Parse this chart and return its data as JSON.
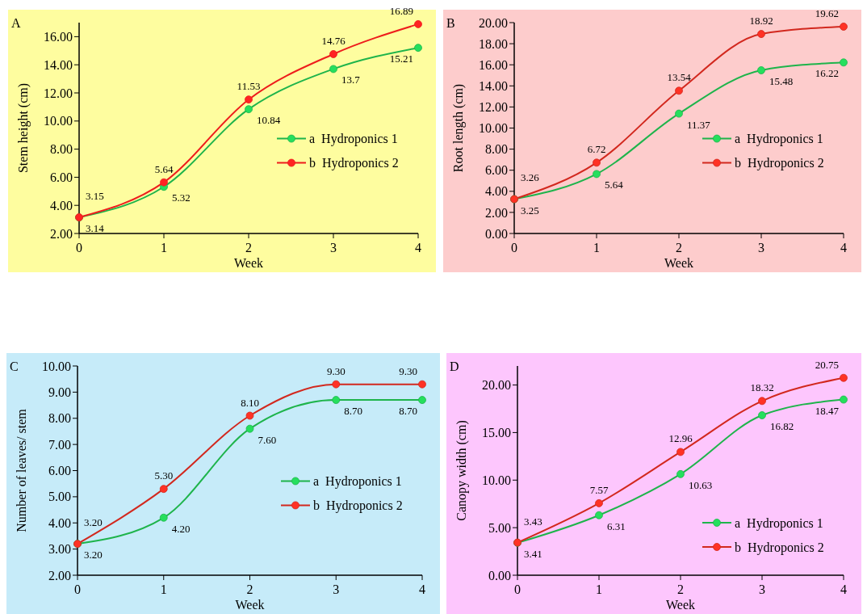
{
  "chart_data": [
    {
      "type": "line",
      "title": "A",
      "xlabel": "Week",
      "ylabel": "Stem height  (cm)",
      "x": [
        0,
        1,
        2,
        3,
        4
      ],
      "xlim": [
        0,
        4
      ],
      "xticks": [
        0,
        1,
        2,
        3,
        4
      ],
      "ylim": [
        2,
        17
      ],
      "yticks": [
        {
          "value": 2,
          "label": "2.00"
        },
        {
          "value": 4,
          "label": "4.00"
        },
        {
          "value": 6,
          "label": "6.00"
        },
        {
          "value": 8,
          "label": "8.00"
        },
        {
          "value": 10,
          "label": "10.00"
        },
        {
          "value": 12,
          "label": "12.00"
        },
        {
          "value": 14,
          "label": "14.00"
        },
        {
          "value": 16,
          "label": "16.00"
        }
      ],
      "marker": "circle",
      "legend": "right",
      "grid": false,
      "series": [
        {
          "name": "a  Hydroponics 1",
          "color": "#1eb44b",
          "values": [
            3.14,
            5.32,
            10.84,
            13.7,
            15.21
          ],
          "value_labels": [
            "3.14",
            "5.32",
            "10.84",
            "13.7",
            "15.21"
          ]
        },
        {
          "name": "b  Hydroponics 2",
          "color": "#ee1c1c",
          "values": [
            3.15,
            5.64,
            11.53,
            14.76,
            16.89
          ],
          "value_labels": [
            "3.15",
            "5.64",
            "11.53",
            "14.76",
            "16.89"
          ]
        }
      ]
    },
    {
      "type": "line",
      "title": "B",
      "xlabel": "Week",
      "ylabel": "Root length (cm)",
      "x": [
        0,
        1,
        2,
        3,
        4
      ],
      "xlim": [
        0,
        4
      ],
      "xticks": [
        0,
        1,
        2,
        3,
        4
      ],
      "ylim": [
        0,
        20
      ],
      "yticks": [
        {
          "value": 0,
          "label": "0.00"
        },
        {
          "value": 2,
          "label": "2.00"
        },
        {
          "value": 4,
          "label": "4.00"
        },
        {
          "value": 6,
          "label": "6.00"
        },
        {
          "value": 8,
          "label": "8.00"
        },
        {
          "value": 10,
          "label": "10.00"
        },
        {
          "value": 12,
          "label": "12.00"
        },
        {
          "value": 14,
          "label": "14.00"
        },
        {
          "value": 16,
          "label": "16.00"
        },
        {
          "value": 18,
          "label": "18.00"
        },
        {
          "value": 20,
          "label": "20.00"
        }
      ],
      "marker": "circle",
      "legend": "right",
      "grid": false,
      "series": [
        {
          "name": "a  Hydroponics 1",
          "color": "#1eb44b",
          "values": [
            3.25,
            5.64,
            11.37,
            15.48,
            16.22
          ],
          "value_labels": [
            "3.25",
            "5.64",
            "11.37",
            "15.48",
            "16.22"
          ]
        },
        {
          "name": "b  Hydroponics 2",
          "color": "#d2281e",
          "values": [
            3.26,
            6.72,
            13.54,
            18.92,
            19.62
          ],
          "value_labels": [
            "3.26",
            "6.72",
            "13.54",
            "18.92",
            "19.62"
          ]
        }
      ]
    },
    {
      "type": "line",
      "title": "C",
      "xlabel": "Week",
      "ylabel": "Number of leaves/ stem",
      "x": [
        0,
        1,
        2,
        3,
        4
      ],
      "xlim": [
        0,
        4
      ],
      "xticks": [
        0,
        1,
        2,
        3,
        4
      ],
      "ylim": [
        2,
        10
      ],
      "yticks": [
        {
          "value": 2,
          "label": "2.00"
        },
        {
          "value": 3,
          "label": "3.00"
        },
        {
          "value": 4,
          "label": "4.00"
        },
        {
          "value": 5,
          "label": "5.00"
        },
        {
          "value": 6,
          "label": "6.00"
        },
        {
          "value": 7,
          "label": "7.00"
        },
        {
          "value": 8,
          "label": "8.00"
        },
        {
          "value": 9,
          "label": "9.00"
        },
        {
          "value": 10,
          "label": "10.00"
        }
      ],
      "marker": "circle",
      "legend": "right",
      "grid": false,
      "series": [
        {
          "name": "a  Hydroponics 1",
          "color": "#1eb44b",
          "values": [
            3.2,
            4.2,
            7.6,
            8.7,
            8.7
          ],
          "value_labels": [
            "3.20",
            "4.20",
            "7.60",
            "8.70",
            "8.70"
          ]
        },
        {
          "name": "b  Hydroponics 2",
          "color": "#d2281e",
          "values": [
            3.2,
            5.3,
            8.1,
            9.3,
            9.3
          ],
          "value_labels": [
            "3.20",
            "5.30",
            "8.10",
            "9.30",
            "9.30"
          ]
        }
      ]
    },
    {
      "type": "line",
      "title": "D",
      "xlabel": "Week",
      "ylabel": "Canopy width (cm)",
      "x": [
        0,
        1,
        2,
        3,
        4
      ],
      "xlim": [
        0,
        4
      ],
      "xticks": [
        0,
        1,
        2,
        3,
        4
      ],
      "ylim": [
        0,
        22
      ],
      "yticks": [
        {
          "value": 0,
          "label": "0.00"
        },
        {
          "value": 5,
          "label": "5.00"
        },
        {
          "value": 10,
          "label": "10.00"
        },
        {
          "value": 15,
          "label": "15.00"
        },
        {
          "value": 20,
          "label": "20.00"
        }
      ],
      "marker": "circle",
      "legend": "bottom right",
      "grid": false,
      "series": [
        {
          "name": "a  Hydroponics 1",
          "color": "#1eb44b",
          "values": [
            3.41,
            6.31,
            10.63,
            16.82,
            18.47
          ],
          "value_labels": [
            "3.41",
            "6.31",
            "10.63",
            "16.82",
            "18.47"
          ]
        },
        {
          "name": "b  Hydroponics 2",
          "color": "#d2281e",
          "values": [
            3.43,
            7.57,
            12.96,
            18.32,
            20.75
          ],
          "value_labels": [
            "3.43",
            "7.57",
            "12.96",
            "18.32",
            "20.75"
          ]
        }
      ]
    }
  ]
}
